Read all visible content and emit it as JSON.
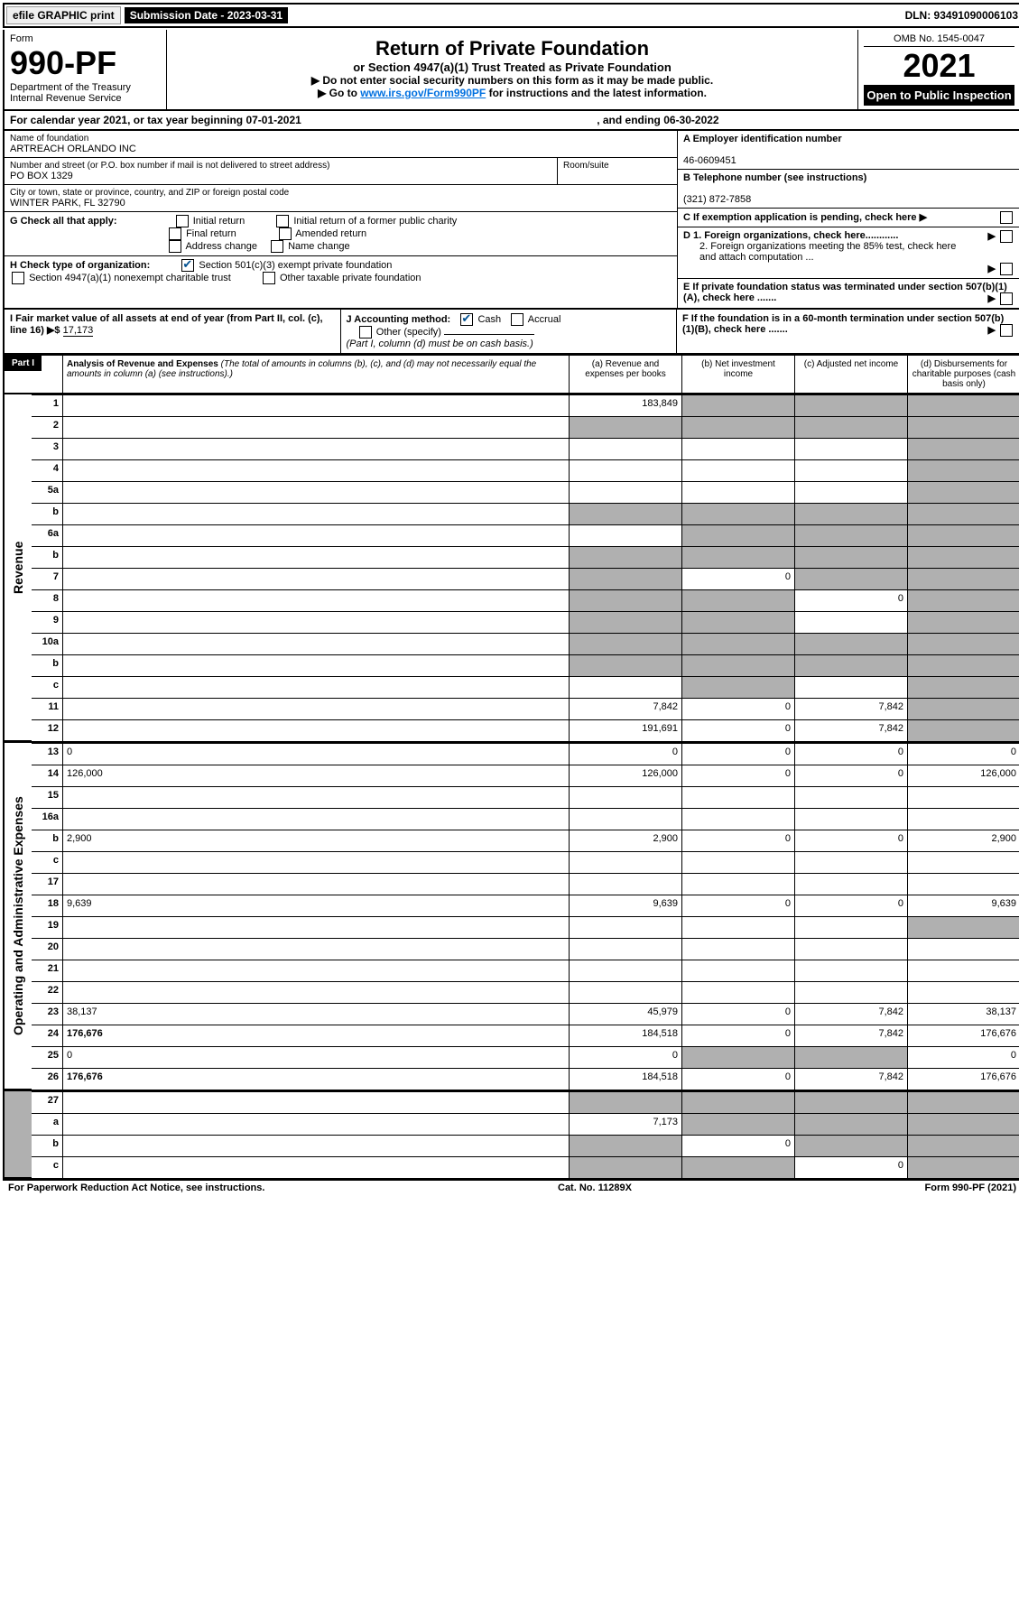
{
  "topbar": {
    "efile": "efile GRAPHIC print",
    "submission": "Submission Date - 2023-03-31",
    "dln": "DLN: 93491090006103"
  },
  "header": {
    "form_word": "Form",
    "form_no": "990-PF",
    "dept": "Department of the Treasury",
    "irs": "Internal Revenue Service",
    "title": "Return of Private Foundation",
    "subtitle": "or Section 4947(a)(1) Trust Treated as Private Foundation",
    "line1": "▶ Do not enter social security numbers on this form as it may be made public.",
    "line2_pre": "▶ Go to ",
    "line2_link": "www.irs.gov/Form990PF",
    "line2_post": " for instructions and the latest information.",
    "omb": "OMB No. 1545-0047",
    "year": "2021",
    "inspect": "Open to Public Inspection"
  },
  "cal": {
    "label": "For calendar year 2021, or tax year beginning 07-01-2021",
    "ending": ", and ending 06-30-2022"
  },
  "id": {
    "name_label": "Name of foundation",
    "name": "ARTREACH ORLANDO INC",
    "addr_label": "Number and street (or P.O. box number if mail is not delivered to street address)",
    "addr": "PO BOX 1329",
    "room_label": "Room/suite",
    "city_label": "City or town, state or province, country, and ZIP or foreign postal code",
    "city": "WINTER PARK, FL  32790",
    "a_label": "A Employer identification number",
    "a_val": "46-0609451",
    "b_label": "B Telephone number (see instructions)",
    "b_val": "(321) 872-7858",
    "c_label": "C If exemption application is pending, check here",
    "g_label": "G Check all that apply:",
    "g_initial": "Initial return",
    "g_initial_former": "Initial return of a former public charity",
    "g_final": "Final return",
    "g_amended": "Amended return",
    "g_address": "Address change",
    "g_name": "Name change",
    "d1": "D 1. Foreign organizations, check here............",
    "d2": "2. Foreign organizations meeting the 85% test, check here and attach computation ...",
    "h_label": "H Check type of organization:",
    "h_501c3": "Section 501(c)(3) exempt private foundation",
    "h_4947": "Section 4947(a)(1) nonexempt charitable trust",
    "h_other": "Other taxable private foundation",
    "e_label": "E  If private foundation status was terminated under section 507(b)(1)(A), check here .......",
    "i_label": "I Fair market value of all assets at end of year (from Part II, col. (c), line 16) ▶$ ",
    "i_val": "17,173",
    "j_label": "J Accounting method:",
    "j_cash": "Cash",
    "j_accrual": "Accrual",
    "j_other": "Other (specify)",
    "j_note": "(Part I, column (d) must be on cash basis.)",
    "f_label": "F  If the foundation is in a 60-month termination under section 507(b)(1)(B), check here ......."
  },
  "part1": {
    "label": "Part I",
    "title": "Analysis of Revenue and Expenses",
    "note": "(The total of amounts in columns (b), (c), and (d) may not necessarily equal the amounts in column (a) (see instructions).)",
    "col_a": "(a)   Revenue and expenses per books",
    "col_b": "(b)   Net investment income",
    "col_c": "(c)   Adjusted net income",
    "col_d": "(d)   Disbursements for charitable purposes (cash basis only)"
  },
  "sides": {
    "revenue": "Revenue",
    "expenses": "Operating and Administrative Expenses"
  },
  "rows": [
    {
      "n": "1",
      "d": "",
      "a": "183,849",
      "b": "",
      "c": "",
      "shade_b": true,
      "shade_c": true,
      "shade_d": true
    },
    {
      "n": "2",
      "d": "",
      "a": "",
      "b": "",
      "c": "",
      "shade_a": true,
      "shade_b": true,
      "shade_c": true,
      "shade_d": true,
      "dots": true,
      "italic_not": true
    },
    {
      "n": "3",
      "d": "",
      "a": "",
      "b": "",
      "c": "",
      "shade_d": true
    },
    {
      "n": "4",
      "d": "",
      "a": "",
      "b": "",
      "c": "",
      "shade_d": true,
      "dots": true
    },
    {
      "n": "5a",
      "d": "",
      "a": "",
      "b": "",
      "c": "",
      "shade_d": true,
      "dots": true
    },
    {
      "n": "b",
      "d": "",
      "a": "",
      "b": "",
      "c": "",
      "shade_a": true,
      "shade_b": true,
      "shade_c": true,
      "shade_d": true
    },
    {
      "n": "6a",
      "d": "",
      "a": "",
      "b": "",
      "c": "",
      "shade_b": true,
      "shade_c": true,
      "shade_d": true
    },
    {
      "n": "b",
      "d": "",
      "a": "",
      "b": "",
      "c": "",
      "shade_a": true,
      "shade_b": true,
      "shade_c": true,
      "shade_d": true
    },
    {
      "n": "7",
      "d": "",
      "a": "",
      "b": "0",
      "c": "",
      "shade_a": true,
      "shade_c": true,
      "shade_d": true,
      "dots": true
    },
    {
      "n": "8",
      "d": "",
      "a": "",
      "b": "",
      "c": "0",
      "shade_a": true,
      "shade_b": true,
      "shade_d": true,
      "dots": true
    },
    {
      "n": "9",
      "d": "",
      "a": "",
      "b": "",
      "c": "",
      "shade_a": true,
      "shade_b": true,
      "shade_d": true,
      "dots": true
    },
    {
      "n": "10a",
      "d": "",
      "a": "",
      "b": "",
      "c": "",
      "shade_a": true,
      "shade_b": true,
      "shade_c": true,
      "shade_d": true
    },
    {
      "n": "b",
      "d": "",
      "a": "",
      "b": "",
      "c": "",
      "shade_a": true,
      "shade_b": true,
      "shade_c": true,
      "shade_d": true,
      "dots": true
    },
    {
      "n": "c",
      "d": "",
      "a": "",
      "b": "",
      "c": "",
      "shade_b": true,
      "shade_d": true,
      "dots": true
    },
    {
      "n": "11",
      "d": "",
      "a": "7,842",
      "b": "0",
      "c": "7,842",
      "shade_d": true,
      "dots": true
    },
    {
      "n": "12",
      "d": "",
      "a": "191,691",
      "b": "0",
      "c": "7,842",
      "shade_d": true,
      "bold": true,
      "dots": true
    }
  ],
  "rows2": [
    {
      "n": "13",
      "d": "0",
      "a": "0",
      "b": "0",
      "c": "0"
    },
    {
      "n": "14",
      "d": "126,000",
      "a": "126,000",
      "b": "0",
      "c": "0",
      "dots": true
    },
    {
      "n": "15",
      "d": "",
      "a": "",
      "b": "",
      "c": "",
      "dots": true
    },
    {
      "n": "16a",
      "d": "",
      "a": "",
      "b": "",
      "c": "",
      "dots": true
    },
    {
      "n": "b",
      "d": "2,900",
      "a": "2,900",
      "b": "0",
      "c": "0",
      "dots": true
    },
    {
      "n": "c",
      "d": "",
      "a": "",
      "b": "",
      "c": "",
      "dots": true
    },
    {
      "n": "17",
      "d": "",
      "a": "",
      "b": "",
      "c": "",
      "dots": true
    },
    {
      "n": "18",
      "d": "9,639",
      "a": "9,639",
      "b": "0",
      "c": "0",
      "dots": true
    },
    {
      "n": "19",
      "d": "",
      "a": "",
      "b": "",
      "c": "",
      "shade_d": true,
      "dots": true
    },
    {
      "n": "20",
      "d": "",
      "a": "",
      "b": "",
      "c": "",
      "dots": true
    },
    {
      "n": "21",
      "d": "",
      "a": "",
      "b": "",
      "c": "",
      "dots": true
    },
    {
      "n": "22",
      "d": "",
      "a": "",
      "b": "",
      "c": "",
      "dots": true
    },
    {
      "n": "23",
      "d": "38,137",
      "a": "45,979",
      "b": "0",
      "c": "7,842",
      "dots": true
    },
    {
      "n": "24",
      "d": "176,676",
      "a": "184,518",
      "b": "0",
      "c": "7,842",
      "bold": true,
      "dots": true
    },
    {
      "n": "25",
      "d": "0",
      "a": "0",
      "b": "",
      "c": "",
      "shade_b": true,
      "shade_c": true,
      "dots": true
    },
    {
      "n": "26",
      "d": "176,676",
      "a": "184,518",
      "b": "0",
      "c": "7,842",
      "bold": true
    }
  ],
  "rows3": [
    {
      "n": "27",
      "d": "",
      "a": "",
      "b": "",
      "c": "",
      "shade_a": true,
      "shade_b": true,
      "shade_c": true,
      "shade_d": true
    },
    {
      "n": "a",
      "d": "",
      "a": "7,173",
      "b": "",
      "c": "",
      "shade_b": true,
      "shade_c": true,
      "shade_d": true,
      "bold": true
    },
    {
      "n": "b",
      "d": "",
      "a": "",
      "b": "0",
      "c": "",
      "shade_a": true,
      "shade_c": true,
      "shade_d": true,
      "bold": true
    },
    {
      "n": "c",
      "d": "",
      "a": "",
      "b": "",
      "c": "0",
      "shade_a": true,
      "shade_b": true,
      "shade_d": true,
      "bold": true,
      "dots": true
    }
  ],
  "footer": {
    "left": "For Paperwork Reduction Act Notice, see instructions.",
    "mid": "Cat. No. 11289X",
    "right": "Form 990-PF (2021)"
  }
}
